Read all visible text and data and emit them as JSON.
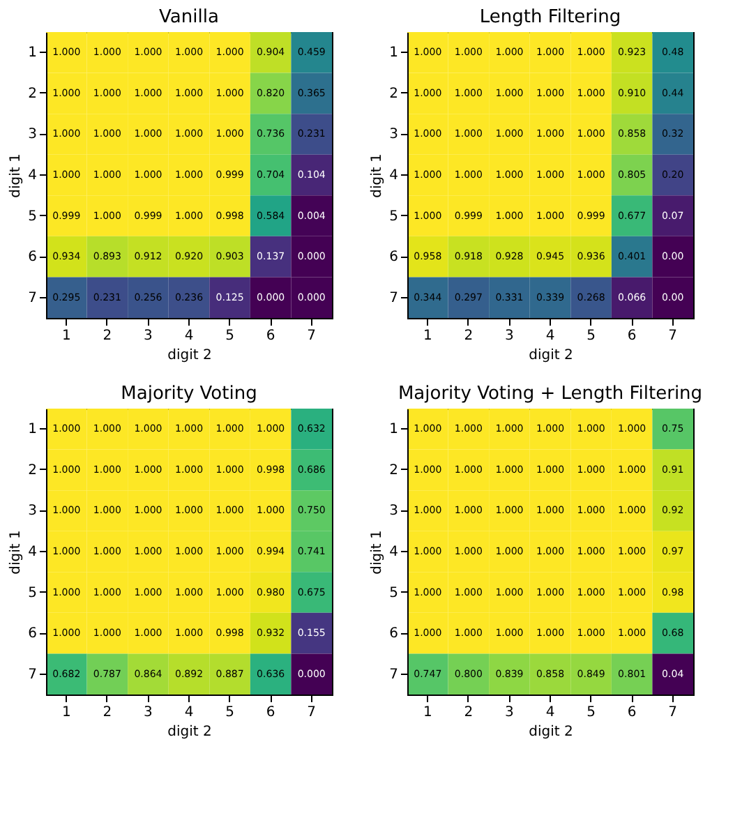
{
  "chart_data": [
    {
      "type": "heatmap",
      "title": "Vanilla",
      "xlabel": "digit 2",
      "ylabel": "digit 1",
      "categories": [
        "1",
        "2",
        "3",
        "4",
        "5",
        "6",
        "7"
      ],
      "y_categories": [
        "1",
        "2",
        "3",
        "4",
        "5",
        "6",
        "7"
      ],
      "cells": [
        [
          1.0,
          1.0,
          1.0,
          1.0,
          1.0,
          0.904,
          0.459
        ],
        [
          1.0,
          1.0,
          1.0,
          1.0,
          1.0,
          0.82,
          0.365
        ],
        [
          1.0,
          1.0,
          1.0,
          1.0,
          1.0,
          0.736,
          0.231
        ],
        [
          1.0,
          1.0,
          1.0,
          1.0,
          0.999,
          0.704,
          0.104
        ],
        [
          0.999,
          1.0,
          0.999,
          1.0,
          0.998,
          0.584,
          0.004
        ],
        [
          0.934,
          0.893,
          0.912,
          0.92,
          0.903,
          0.137,
          0.0
        ],
        [
          0.295,
          0.231,
          0.256,
          0.236,
          0.125,
          0.0,
          0.0
        ]
      ],
      "cell_labels": [
        [
          "1.000",
          "1.000",
          "1.000",
          "1.000",
          "1.000",
          "0.904",
          "0.459"
        ],
        [
          "1.000",
          "1.000",
          "1.000",
          "1.000",
          "1.000",
          "0.820",
          "0.365"
        ],
        [
          "1.000",
          "1.000",
          "1.000",
          "1.000",
          "1.000",
          "0.736",
          "0.231"
        ],
        [
          "1.000",
          "1.000",
          "1.000",
          "1.000",
          "0.999",
          "0.704",
          "0.104"
        ],
        [
          "0.999",
          "1.000",
          "0.999",
          "1.000",
          "0.998",
          "0.584",
          "0.004"
        ],
        [
          "0.934",
          "0.893",
          "0.912",
          "0.920",
          "0.903",
          "0.137",
          "0.000"
        ],
        [
          "0.295",
          "0.231",
          "0.256",
          "0.236",
          "0.125",
          "0.000",
          "0.000"
        ]
      ]
    },
    {
      "type": "heatmap",
      "title": "Length Filtering",
      "xlabel": "digit 2",
      "ylabel": "digit 1",
      "categories": [
        "1",
        "2",
        "3",
        "4",
        "5",
        "6",
        "7"
      ],
      "y_categories": [
        "1",
        "2",
        "3",
        "4",
        "5",
        "6",
        "7"
      ],
      "cells": [
        [
          1.0,
          1.0,
          1.0,
          1.0,
          1.0,
          0.923,
          0.48
        ],
        [
          1.0,
          1.0,
          1.0,
          1.0,
          1.0,
          0.91,
          0.44
        ],
        [
          1.0,
          1.0,
          1.0,
          1.0,
          1.0,
          0.858,
          0.32
        ],
        [
          1.0,
          1.0,
          1.0,
          1.0,
          1.0,
          0.805,
          0.2
        ],
        [
          1.0,
          0.999,
          1.0,
          1.0,
          0.999,
          0.677,
          0.07
        ],
        [
          0.958,
          0.918,
          0.928,
          0.945,
          0.936,
          0.401,
          0.0
        ],
        [
          0.344,
          0.297,
          0.331,
          0.339,
          0.268,
          0.066,
          0.0
        ]
      ],
      "cell_labels": [
        [
          "1.000",
          "1.000",
          "1.000",
          "1.000",
          "1.000",
          "0.923",
          "0.48"
        ],
        [
          "1.000",
          "1.000",
          "1.000",
          "1.000",
          "1.000",
          "0.910",
          "0.44"
        ],
        [
          "1.000",
          "1.000",
          "1.000",
          "1.000",
          "1.000",
          "0.858",
          "0.32"
        ],
        [
          "1.000",
          "1.000",
          "1.000",
          "1.000",
          "1.000",
          "0.805",
          "0.20"
        ],
        [
          "1.000",
          "0.999",
          "1.000",
          "1.000",
          "0.999",
          "0.677",
          "0.07"
        ],
        [
          "0.958",
          "0.918",
          "0.928",
          "0.945",
          "0.936",
          "0.401",
          "0.00"
        ],
        [
          "0.344",
          "0.297",
          "0.331",
          "0.339",
          "0.268",
          "0.066",
          "0.00"
        ]
      ]
    },
    {
      "type": "heatmap",
      "title": "Majority Voting",
      "xlabel": "digit 2",
      "ylabel": "digit 1",
      "categories": [
        "1",
        "2",
        "3",
        "4",
        "5",
        "6",
        "7"
      ],
      "y_categories": [
        "1",
        "2",
        "3",
        "4",
        "5",
        "6",
        "7"
      ],
      "cells": [
        [
          1.0,
          1.0,
          1.0,
          1.0,
          1.0,
          1.0,
          0.632
        ],
        [
          1.0,
          1.0,
          1.0,
          1.0,
          1.0,
          0.998,
          0.686
        ],
        [
          1.0,
          1.0,
          1.0,
          1.0,
          1.0,
          1.0,
          0.75
        ],
        [
          1.0,
          1.0,
          1.0,
          1.0,
          1.0,
          0.994,
          0.741
        ],
        [
          1.0,
          1.0,
          1.0,
          1.0,
          1.0,
          0.98,
          0.675
        ],
        [
          1.0,
          1.0,
          1.0,
          1.0,
          0.998,
          0.932,
          0.155
        ],
        [
          0.682,
          0.787,
          0.864,
          0.892,
          0.887,
          0.636,
          0.0
        ]
      ],
      "cell_labels": [
        [
          "1.000",
          "1.000",
          "1.000",
          "1.000",
          "1.000",
          "1.000",
          "0.632"
        ],
        [
          "1.000",
          "1.000",
          "1.000",
          "1.000",
          "1.000",
          "0.998",
          "0.686"
        ],
        [
          "1.000",
          "1.000",
          "1.000",
          "1.000",
          "1.000",
          "1.000",
          "0.750"
        ],
        [
          "1.000",
          "1.000",
          "1.000",
          "1.000",
          "1.000",
          "0.994",
          "0.741"
        ],
        [
          "1.000",
          "1.000",
          "1.000",
          "1.000",
          "1.000",
          "0.980",
          "0.675"
        ],
        [
          "1.000",
          "1.000",
          "1.000",
          "1.000",
          "0.998",
          "0.932",
          "0.155"
        ],
        [
          "0.682",
          "0.787",
          "0.864",
          "0.892",
          "0.887",
          "0.636",
          "0.000"
        ]
      ]
    },
    {
      "type": "heatmap",
      "title": "Majority Voting + Length Filtering",
      "xlabel": "digit 2",
      "ylabel": "digit 1",
      "categories": [
        "1",
        "2",
        "3",
        "4",
        "5",
        "6",
        "7"
      ],
      "y_categories": [
        "1",
        "2",
        "3",
        "4",
        "5",
        "6",
        "7"
      ],
      "cells": [
        [
          1.0,
          1.0,
          1.0,
          1.0,
          1.0,
          1.0,
          0.75
        ],
        [
          1.0,
          1.0,
          1.0,
          1.0,
          1.0,
          1.0,
          0.91
        ],
        [
          1.0,
          1.0,
          1.0,
          1.0,
          1.0,
          1.0,
          0.92
        ],
        [
          1.0,
          1.0,
          1.0,
          1.0,
          1.0,
          1.0,
          0.97
        ],
        [
          1.0,
          1.0,
          1.0,
          1.0,
          1.0,
          1.0,
          0.98
        ],
        [
          1.0,
          1.0,
          1.0,
          1.0,
          1.0,
          1.0,
          0.68
        ],
        [
          0.747,
          0.8,
          0.839,
          0.858,
          0.849,
          0.801,
          0.04
        ]
      ],
      "cell_labels": [
        [
          "1.000",
          "1.000",
          "1.000",
          "1.000",
          "1.000",
          "1.000",
          "0.75"
        ],
        [
          "1.000",
          "1.000",
          "1.000",
          "1.000",
          "1.000",
          "1.000",
          "0.91"
        ],
        [
          "1.000",
          "1.000",
          "1.000",
          "1.000",
          "1.000",
          "1.000",
          "0.92"
        ],
        [
          "1.000",
          "1.000",
          "1.000",
          "1.000",
          "1.000",
          "1.000",
          "0.97"
        ],
        [
          "1.000",
          "1.000",
          "1.000",
          "1.000",
          "1.000",
          "1.000",
          "0.98"
        ],
        [
          "1.000",
          "1.000",
          "1.000",
          "1.000",
          "1.000",
          "1.000",
          "0.68"
        ],
        [
          "0.747",
          "0.800",
          "0.839",
          "0.858",
          "0.849",
          "0.801",
          "0.04"
        ]
      ]
    }
  ]
}
